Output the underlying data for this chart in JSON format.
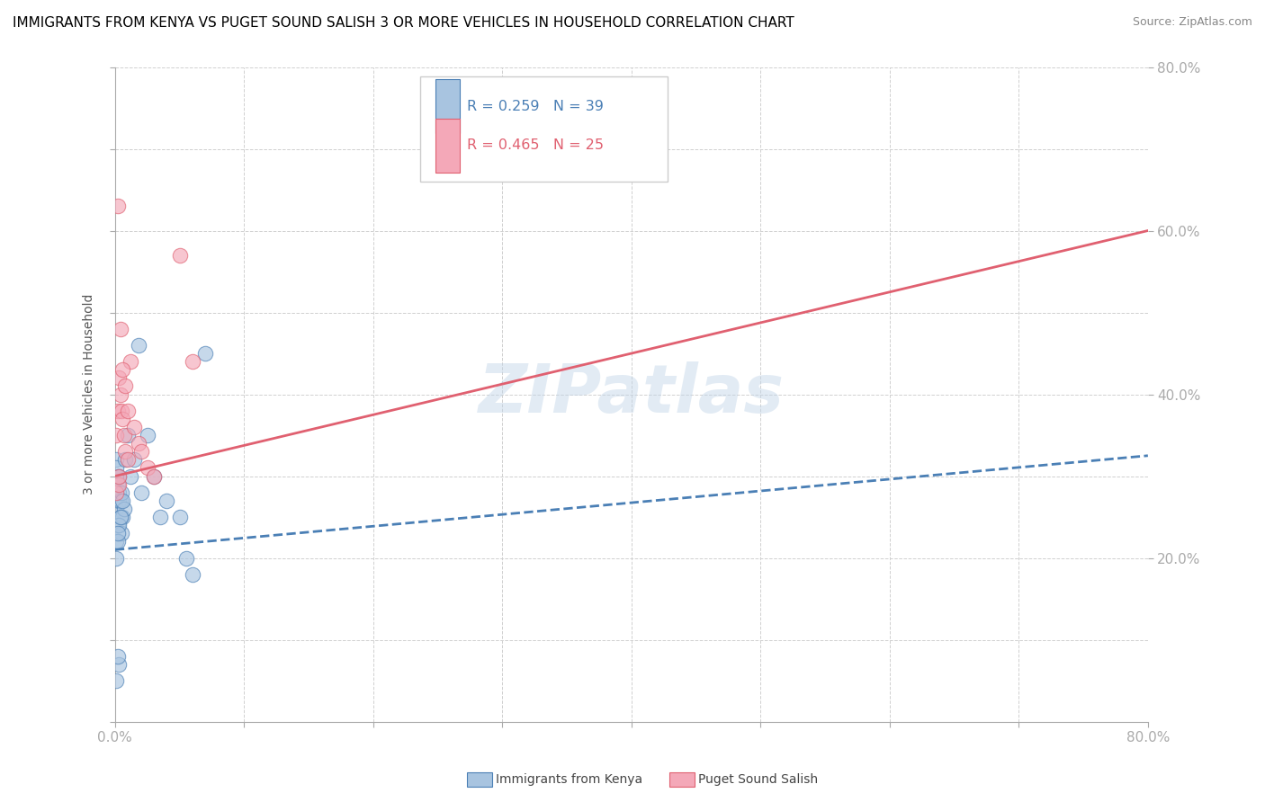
{
  "title": "IMMIGRANTS FROM KENYA VS PUGET SOUND SALISH 3 OR MORE VEHICLES IN HOUSEHOLD CORRELATION CHART",
  "source": "Source: ZipAtlas.com",
  "ylabel": "3 or more Vehicles in Household",
  "legend_kenya_r": "R = 0.259",
  "legend_kenya_n": "N = 39",
  "legend_salish_r": "R = 0.465",
  "legend_salish_n": "N = 25",
  "legend_kenya_label": "Immigrants from Kenya",
  "legend_salish_label": "Puget Sound Salish",
  "watermark": "ZIPatlas",
  "kenya_color": "#a8c4e0",
  "salish_color": "#f4a8b8",
  "kenya_line_color": "#4a7fb5",
  "salish_line_color": "#e06070",
  "kenya_scatter_x": [
    0.1,
    0.2,
    0.1,
    0.3,
    0.2,
    0.1,
    0.4,
    0.3,
    0.2,
    0.1,
    0.5,
    0.6,
    0.4,
    0.3,
    0.2,
    0.1,
    0.7,
    0.5,
    0.3,
    0.2,
    0.8,
    1.0,
    0.6,
    0.4,
    1.2,
    1.5,
    2.0,
    2.5,
    3.0,
    3.5,
    1.8,
    4.0,
    5.0,
    5.5,
    6.0,
    7.0,
    0.3,
    0.2,
    0.1
  ],
  "kenya_scatter_y": [
    22.0,
    24.0,
    26.0,
    28.0,
    30.0,
    32.0,
    25.0,
    27.0,
    29.0,
    31.0,
    23.0,
    25.0,
    27.0,
    24.0,
    22.0,
    20.0,
    26.0,
    28.0,
    30.0,
    23.0,
    32.0,
    35.0,
    27.0,
    25.0,
    30.0,
    32.0,
    28.0,
    35.0,
    30.0,
    25.0,
    46.0,
    27.0,
    25.0,
    20.0,
    18.0,
    45.0,
    7.0,
    8.0,
    5.0
  ],
  "salish_scatter_x": [
    0.1,
    0.2,
    0.3,
    0.4,
    0.5,
    0.6,
    0.7,
    0.8,
    1.0,
    1.2,
    1.5,
    1.8,
    2.0,
    2.5,
    3.0,
    0.2,
    0.4,
    0.6,
    0.8,
    1.0,
    0.1,
    0.3,
    5.0,
    6.0,
    0.3
  ],
  "salish_scatter_y": [
    35.0,
    38.0,
    42.0,
    40.0,
    38.0,
    37.0,
    35.0,
    33.0,
    32.0,
    44.0,
    36.0,
    34.0,
    33.0,
    31.0,
    30.0,
    63.0,
    48.0,
    43.0,
    41.0,
    38.0,
    28.0,
    29.0,
    57.0,
    44.0,
    30.0
  ],
  "kenya_line_x0": 0.0,
  "kenya_line_x1": 80.0,
  "kenya_line_y0": 21.0,
  "kenya_line_y1": 32.5,
  "salish_line_x0": 0.0,
  "salish_line_x1": 80.0,
  "salish_line_y0": 30.0,
  "salish_line_y1": 60.0,
  "xmin": 0.0,
  "xmax": 80.0,
  "ymin": 0.0,
  "ymax": 80.0,
  "title_fontsize": 11,
  "axis_fontsize": 10,
  "tick_fontsize": 11
}
